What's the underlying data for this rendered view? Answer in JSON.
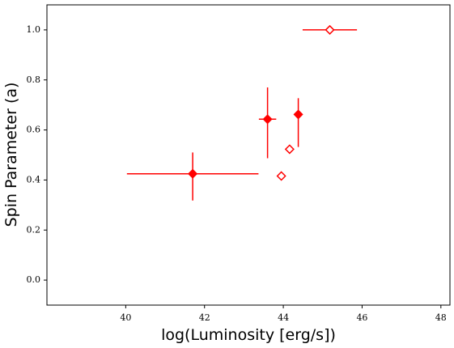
{
  "chart_data": {
    "type": "scatter",
    "x_label": "log(Luminosity [erg/s])",
    "y_label": "Spin Parameter (a)",
    "xlim": [
      38.0,
      48.23
    ],
    "ylim": [
      -0.1,
      1.1
    ],
    "xticks": [
      40,
      42,
      44,
      46,
      48
    ],
    "yticks": [
      {
        "value": 0.0,
        "label": "0.0"
      },
      {
        "value": 0.2,
        "label": "0.2"
      },
      {
        "value": 0.4,
        "label": "0.4"
      },
      {
        "value": 0.6,
        "label": "0.6"
      },
      {
        "value": 0.8,
        "label": "0.8"
      },
      {
        "value": 1.0,
        "label": "1.0"
      }
    ],
    "series": [
      {
        "color": "#ff0000",
        "marker": "filled",
        "x": [
          41.7,
          43.6,
          44.38
        ],
        "values": [
          0.425,
          0.643,
          0.662
        ],
        "xerr": [
          [
            1.67,
            1.67
          ],
          [
            0.22,
            0.22
          ],
          null
        ],
        "yerr": [
          [
            0.107,
            0.085
          ],
          [
            0.156,
            0.127
          ],
          [
            0.13,
            0.065
          ]
        ]
      },
      {
        "color": "#ff0000",
        "marker": "open",
        "x": [
          43.95,
          44.16,
          45.18
        ],
        "values": [
          0.416,
          0.523,
          1.0
        ],
        "xerr": [
          null,
          null,
          [
            0.69,
            0.69
          ]
        ]
      }
    ]
  }
}
